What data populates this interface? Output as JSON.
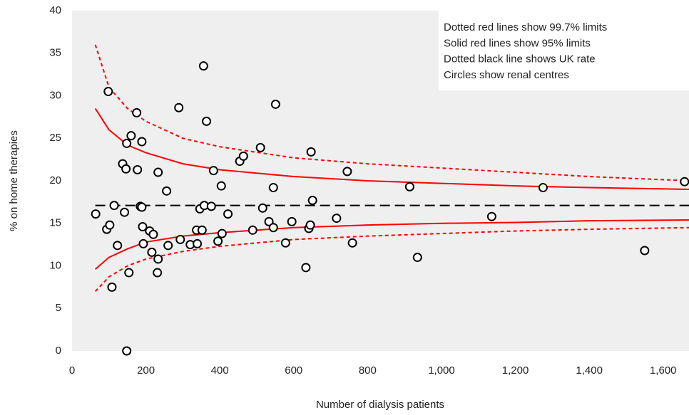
{
  "chart_data": {
    "type": "scatter",
    "xlabel": "Number of dialysis patients",
    "ylabel": "% on home therapies",
    "xlim": [
      0,
      1670
    ],
    "ylim": [
      0,
      40
    ],
    "xticks": [
      0,
      200,
      400,
      600,
      800,
      {
        "value": 1000,
        "label": "1,000"
      },
      {
        "value": 1200,
        "label": "1,200"
      },
      {
        "value": 1400,
        "label": "1,400"
      },
      {
        "value": 1600,
        "label": "1,600"
      }
    ],
    "yticks": [
      0,
      5,
      10,
      15,
      20,
      25,
      30,
      35,
      40
    ],
    "grid": false,
    "background": "#efefef",
    "annotations": [
      "Dotted red lines show 99.7% limits",
      "Solid red lines show 95% limits",
      "Dotted black line shows UK rate",
      "Circles show renal centres"
    ],
    "series": [
      {
        "style": "marker",
        "color": "#000000",
        "x": [
          64,
          98,
          94,
          102,
          114,
          108,
          123,
          137,
          142,
          146,
          148,
          148,
          154,
          160,
          175,
          177,
          185,
          189,
          189,
          191,
          193,
          210,
          216,
          220,
          231,
          233,
          233,
          256,
          260,
          289,
          293,
          320,
          337,
          339,
          346,
          352,
          358,
          356,
          364,
          377,
          383,
          395,
          406,
          404,
          422,
          454,
          464,
          489,
          510,
          516,
          533,
          545,
          545,
          551,
          578,
          595,
          633,
          641,
          645,
          647,
          651,
          716,
          745,
          759,
          914,
          935,
          1136,
          1275,
          1550,
          1658
        ],
        "values": [
          16.1,
          30.5,
          14.3,
          14.8,
          17.1,
          7.5,
          12.4,
          22.0,
          16.3,
          21.4,
          24.4,
          0,
          9.2,
          25.3,
          28.0,
          21.3,
          17.0,
          16.9,
          24.6,
          14.6,
          12.6,
          14.1,
          11.6,
          13.7,
          9.2,
          10.8,
          21.0,
          18.8,
          12.4,
          28.6,
          13.1,
          12.5,
          14.2,
          12.6,
          16.7,
          14.2,
          17.1,
          33.5,
          27.0,
          17.0,
          21.2,
          12.9,
          13.8,
          19.4,
          16.1,
          22.3,
          22.9,
          14.2,
          23.9,
          16.8,
          15.2,
          14.5,
          19.2,
          29.0,
          12.7,
          15.2,
          9.8,
          14.4,
          14.8,
          23.4,
          17.7,
          15.6,
          21.1,
          12.7,
          19.3,
          11.0,
          15.8,
          19.2,
          11.8,
          19.9
        ]
      },
      {
        "style": "dashed",
        "color": "#000000",
        "x": [
          63,
          1670
        ],
        "values": [
          17.1,
          17.1
        ]
      },
      {
        "style": "solid",
        "color": "#ff0000",
        "x": [
          63,
          100,
          150,
          200,
          300,
          400,
          600,
          800,
          1000,
          1200,
          1400,
          1670
        ],
        "values": [
          28.5,
          26.0,
          24.2,
          23.3,
          22.0,
          21.3,
          20.5,
          20.0,
          19.7,
          19.4,
          19.2,
          19.0
        ]
      },
      {
        "style": "solid",
        "color": "#ff0000",
        "x": [
          63,
          100,
          150,
          200,
          300,
          400,
          600,
          800,
          1000,
          1200,
          1400,
          1670
        ],
        "values": [
          9.6,
          11.0,
          12.0,
          12.8,
          13.5,
          13.9,
          14.5,
          14.8,
          15.0,
          15.1,
          15.3,
          15.4
        ]
      },
      {
        "style": "dotted",
        "color": "#ff0000",
        "x": [
          63,
          100,
          150,
          200,
          300,
          400,
          600,
          800,
          1000,
          1200,
          1400,
          1670
        ],
        "values": [
          36.0,
          31.0,
          28.5,
          27.0,
          25.0,
          24.0,
          22.7,
          22.0,
          21.5,
          21.0,
          20.5,
          20.0
        ]
      },
      {
        "style": "dotted",
        "color": "#ff0000",
        "x": [
          63,
          100,
          150,
          200,
          300,
          400,
          600,
          800,
          1000,
          1200,
          1400,
          1670
        ],
        "values": [
          7.0,
          8.7,
          10.0,
          10.8,
          11.7,
          12.3,
          13.1,
          13.5,
          13.8,
          14.1,
          14.3,
          14.5
        ]
      }
    ]
  }
}
